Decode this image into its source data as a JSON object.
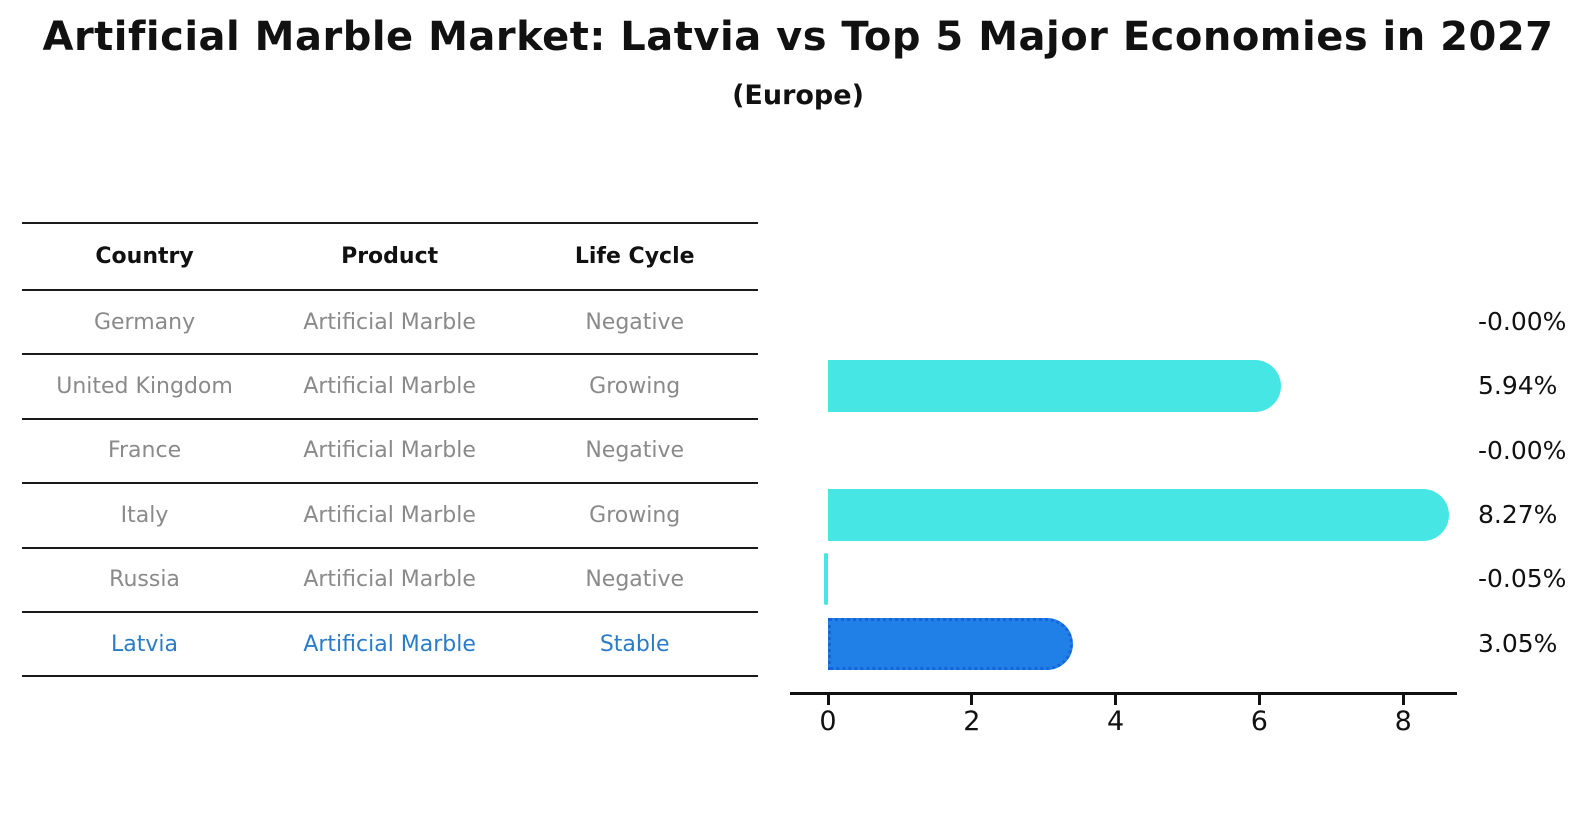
{
  "title": "Artificial Marble Market: Latvia vs Top 5 Major Economies in 2027",
  "subtitle": "(Europe)",
  "table": {
    "headers": [
      "Country",
      "Product",
      "Life Cycle"
    ],
    "rows": [
      {
        "country": "Germany",
        "product": "Artificial Marble",
        "life_cycle": "Negative",
        "highlighted": false
      },
      {
        "country": "United Kingdom",
        "product": "Artificial Marble",
        "life_cycle": "Growing",
        "highlighted": false
      },
      {
        "country": "France",
        "product": "Artificial Marble",
        "life_cycle": "Negative",
        "highlighted": false
      },
      {
        "country": "Italy",
        "product": "Artificial Marble",
        "life_cycle": "Growing",
        "highlighted": false
      },
      {
        "country": "Russia",
        "product": "Artificial Marble",
        "life_cycle": "Negative",
        "highlighted": false
      },
      {
        "country": "Latvia",
        "product": "Artificial Marble",
        "life_cycle": "Stable",
        "highlighted": true
      }
    ]
  },
  "chart_data": {
    "type": "bar",
    "orientation": "horizontal",
    "categories": [
      "Germany",
      "United Kingdom",
      "France",
      "Italy",
      "Russia",
      "Latvia"
    ],
    "values": [
      -0.0,
      5.94,
      -0.0,
      8.27,
      -0.05,
      3.05
    ],
    "value_labels": [
      "-0.00%",
      "5.94%",
      "-0.00%",
      "8.27%",
      "-0.05%",
      "3.05%"
    ],
    "xticks": [
      0,
      2,
      4,
      6,
      8
    ],
    "xlim": [
      0,
      8.75
    ],
    "grid": false,
    "legend": false,
    "bar_color": "#45e6e3",
    "highlight_color": "#2080e8",
    "highlight_border_color": "#1565d8",
    "highlight_index": 5
  },
  "colors": {
    "text_primary": "#111111",
    "text_muted": "#8a8a8a",
    "highlight_text": "#2a7cc9",
    "table_line": "#1a1a1a"
  }
}
